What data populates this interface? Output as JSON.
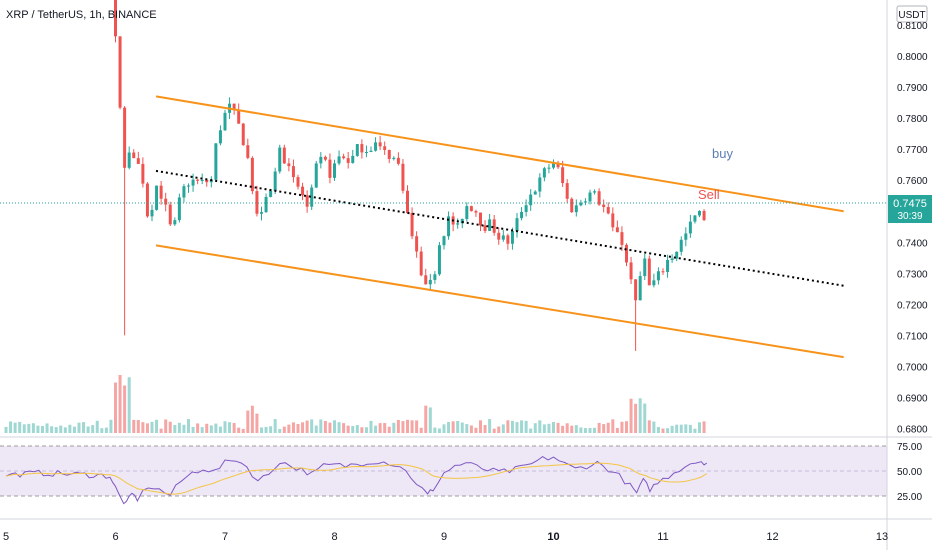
{
  "header": {
    "title": "XRP / TetherUS, 1h, BINANCE"
  },
  "price_axis": {
    "currency_label": "USDT",
    "ticks": [
      "0.8100",
      "0.8000",
      "0.7900",
      "0.7800",
      "0.7700",
      "0.7600",
      "0.7500",
      "0.7400",
      "0.7300",
      "0.7200",
      "0.7100",
      "0.7000",
      "0.6900",
      "0.6800"
    ],
    "last_price": "0.7475",
    "countdown": "30:39"
  },
  "rsi_axis": {
    "ticks": [
      "75.00",
      "50.00",
      "25.00"
    ]
  },
  "time_axis": {
    "ticks": [
      "5",
      "6",
      "7",
      "8",
      "9",
      "10",
      "11",
      "12",
      "13"
    ]
  },
  "annotations": {
    "buy": "buy",
    "sell": "Sell"
  },
  "colors": {
    "up": "#26a69a",
    "down": "#ef5350",
    "vol_up": "#9fd8d2",
    "vol_down": "#f5a5a3",
    "channel": "#f7931a",
    "midline": "#000000",
    "rsi_line": "#7e57c2",
    "rsi_ma": "#f5c542",
    "rsi_band": "#ede7f6",
    "last_price_bg": "#26a69a",
    "buy_text": "#2962ff",
    "sell_text": "#ef5350"
  },
  "chart_data": {
    "type": "candlestick",
    "title": "XRP / TetherUS, 1h, BINANCE",
    "symbol": "XRP / TetherUS",
    "interval": "1h",
    "exchange": "BINANCE",
    "ylim": [
      0.675,
      0.815
    ],
    "x_days": [
      "5",
      "6",
      "7",
      "8",
      "9",
      "10",
      "11",
      "12",
      "13"
    ],
    "close_path": [
      [
        6.0,
        0.805
      ],
      [
        6.02,
        0.795
      ],
      [
        6.05,
        0.78
      ],
      [
        6.08,
        0.763
      ],
      [
        6.12,
        0.77
      ],
      [
        6.18,
        0.768
      ],
      [
        6.25,
        0.76
      ],
      [
        6.3,
        0.747
      ],
      [
        6.38,
        0.759
      ],
      [
        6.45,
        0.752
      ],
      [
        6.52,
        0.742
      ],
      [
        6.6,
        0.756
      ],
      [
        6.68,
        0.76
      ],
      [
        6.78,
        0.759
      ],
      [
        6.88,
        0.76
      ],
      [
        6.92,
        0.772
      ],
      [
        6.98,
        0.78
      ],
      [
        7.05,
        0.784
      ],
      [
        7.12,
        0.778
      ],
      [
        7.2,
        0.769
      ],
      [
        7.28,
        0.748
      ],
      [
        7.36,
        0.752
      ],
      [
        7.44,
        0.758
      ],
      [
        7.5,
        0.772
      ],
      [
        7.56,
        0.765
      ],
      [
        7.62,
        0.76
      ],
      [
        7.7,
        0.756
      ],
      [
        7.76,
        0.75
      ],
      [
        7.84,
        0.765
      ],
      [
        7.9,
        0.767
      ],
      [
        7.96,
        0.762
      ],
      [
        8.05,
        0.768
      ],
      [
        8.15,
        0.766
      ],
      [
        8.22,
        0.771
      ],
      [
        8.3,
        0.77
      ],
      [
        8.38,
        0.772
      ],
      [
        8.44,
        0.769
      ],
      [
        8.52,
        0.768
      ],
      [
        8.6,
        0.764
      ],
      [
        8.66,
        0.75
      ],
      [
        8.72,
        0.74
      ],
      [
        8.78,
        0.732
      ],
      [
        8.84,
        0.724
      ],
      [
        8.9,
        0.728
      ],
      [
        8.96,
        0.74
      ],
      [
        9.05,
        0.748
      ],
      [
        9.12,
        0.744
      ],
      [
        9.2,
        0.752
      ],
      [
        9.28,
        0.751
      ],
      [
        9.36,
        0.745
      ],
      [
        9.42,
        0.746
      ],
      [
        9.5,
        0.742
      ],
      [
        9.58,
        0.74
      ],
      [
        9.64,
        0.744
      ],
      [
        9.7,
        0.75
      ],
      [
        9.78,
        0.755
      ],
      [
        9.85,
        0.758
      ],
      [
        9.92,
        0.763
      ],
      [
        10.0,
        0.766
      ],
      [
        10.06,
        0.762
      ],
      [
        10.12,
        0.754
      ],
      [
        10.18,
        0.75
      ],
      [
        10.24,
        0.753
      ],
      [
        10.3,
        0.755
      ],
      [
        10.36,
        0.756
      ],
      [
        10.42,
        0.753
      ],
      [
        10.48,
        0.75
      ],
      [
        10.54,
        0.744
      ],
      [
        10.6,
        0.744
      ],
      [
        10.66,
        0.734
      ],
      [
        10.72,
        0.728
      ],
      [
        10.76,
        0.72
      ],
      [
        10.82,
        0.736
      ],
      [
        10.88,
        0.725
      ],
      [
        10.93,
        0.728
      ],
      [
        10.98,
        0.73
      ],
      [
        11.04,
        0.734
      ],
      [
        11.1,
        0.736
      ],
      [
        11.16,
        0.74
      ],
      [
        11.22,
        0.743
      ],
      [
        11.28,
        0.748
      ],
      [
        11.34,
        0.749
      ],
      [
        11.4,
        0.7475
      ]
    ],
    "channel": {
      "upper": [
        [
          6.37,
          0.787
        ],
        [
          12.65,
          0.75
        ]
      ],
      "lower": [
        [
          6.37,
          0.739
        ],
        [
          12.65,
          0.703
        ]
      ],
      "middle": [
        [
          6.37,
          0.763
        ],
        [
          12.65,
          0.726
        ]
      ]
    },
    "volume_relative": "bars scaled to panel height",
    "rsi": {
      "levels": [
        75,
        50,
        25
      ],
      "range": [
        15,
        80
      ],
      "values": [
        [
          5.0,
          46
        ],
        [
          5.3,
          48
        ],
        [
          5.6,
          47
        ],
        [
          5.8,
          46
        ],
        [
          5.95,
          45
        ],
        [
          6.0,
          33
        ],
        [
          6.05,
          22
        ],
        [
          6.1,
          17
        ],
        [
          6.15,
          27
        ],
        [
          6.2,
          22
        ],
        [
          6.3,
          35
        ],
        [
          6.4,
          31
        ],
        [
          6.5,
          26
        ],
        [
          6.6,
          40
        ],
        [
          6.7,
          48
        ],
        [
          6.8,
          53
        ],
        [
          6.9,
          49
        ],
        [
          7.0,
          58
        ],
        [
          7.1,
          62
        ],
        [
          7.2,
          54
        ],
        [
          7.3,
          40
        ],
        [
          7.4,
          47
        ],
        [
          7.5,
          60
        ],
        [
          7.6,
          55
        ],
        [
          7.7,
          51
        ],
        [
          7.8,
          47
        ],
        [
          7.9,
          55
        ],
        [
          8.0,
          56
        ],
        [
          8.1,
          55
        ],
        [
          8.2,
          57
        ],
        [
          8.3,
          59
        ],
        [
          8.4,
          60
        ],
        [
          8.5,
          58
        ],
        [
          8.6,
          55
        ],
        [
          8.7,
          44
        ],
        [
          8.8,
          32
        ],
        [
          8.85,
          26
        ],
        [
          8.9,
          32
        ],
        [
          9.0,
          48
        ],
        [
          9.1,
          55
        ],
        [
          9.2,
          58
        ],
        [
          9.3,
          54
        ],
        [
          9.4,
          51
        ],
        [
          9.5,
          49
        ],
        [
          9.6,
          50
        ],
        [
          9.7,
          53
        ],
        [
          9.8,
          57
        ],
        [
          9.9,
          62
        ],
        [
          10.0,
          64
        ],
        [
          10.1,
          57
        ],
        [
          10.2,
          52
        ],
        [
          10.3,
          55
        ],
        [
          10.4,
          58
        ],
        [
          10.5,
          52
        ],
        [
          10.6,
          45
        ],
        [
          10.7,
          35
        ],
        [
          10.76,
          28
        ],
        [
          10.82,
          40
        ],
        [
          10.88,
          32
        ],
        [
          10.95,
          38
        ],
        [
          11.05,
          45
        ],
        [
          11.15,
          52
        ],
        [
          11.25,
          58
        ],
        [
          11.35,
          60
        ],
        [
          11.4,
          58
        ]
      ]
    }
  }
}
